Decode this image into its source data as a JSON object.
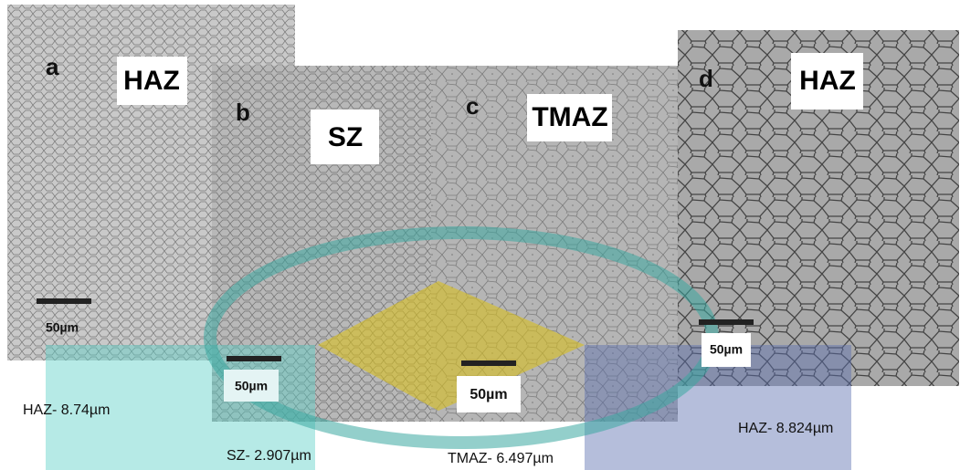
{
  "panels": [
    {
      "letter": "a",
      "zone": "HAZ",
      "scale": "50µm"
    },
    {
      "letter": "b",
      "zone": "SZ",
      "scale": "50µm"
    },
    {
      "letter": "c",
      "zone": "TMAZ",
      "scale": "50µm"
    },
    {
      "letter": "d",
      "zone": "HAZ",
      "scale": "50µm"
    }
  ],
  "measurements": [
    "HAZ- 8.74µm",
    "SZ- 2.907µm",
    "TMAZ- 6.497µm",
    "HAZ- 8.824µm"
  ]
}
